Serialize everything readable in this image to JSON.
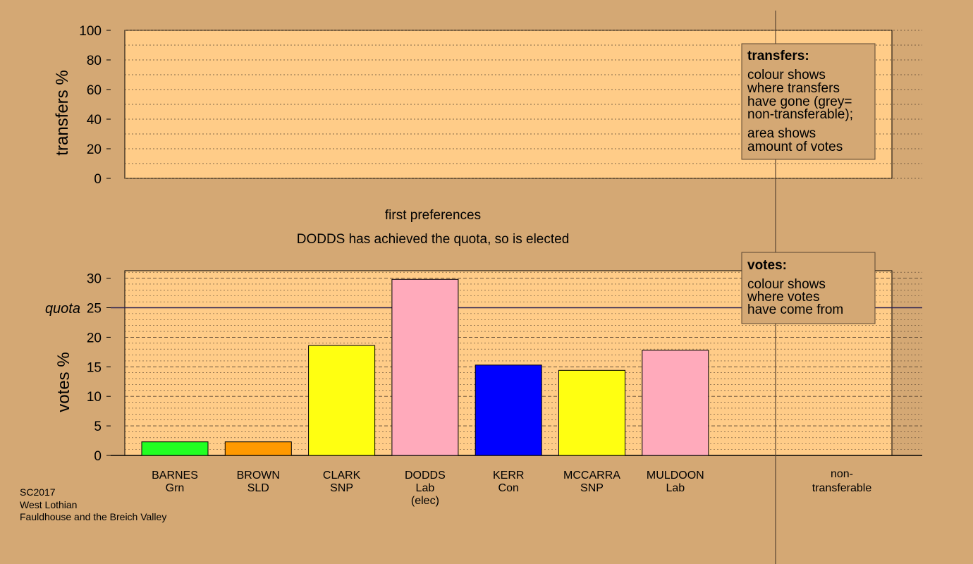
{
  "colors": {
    "background": "#d4a874",
    "plot_fill": "#ffcc88",
    "grid": "#5a4632",
    "BARNES": "#22ff22",
    "BROWN": "#ff9900",
    "CLARK": "#ffff11",
    "DODDS": "#ffaabb",
    "KERR": "#0000ff",
    "MCCARRA": "#ffff11",
    "MULDOON": "#ffaabb"
  },
  "chart_data": [
    {
      "type": "bar",
      "panel": "transfers",
      "ylabel": "transfers %",
      "ylim": [
        0,
        100
      ],
      "yticks": [
        0,
        20,
        40,
        60,
        80,
        100
      ],
      "legend": {
        "title": "transfers:",
        "lines": [
          "colour shows",
          "where transfers",
          "have gone (grey=",
          "non-transferable);",
          "area shows",
          "amount of votes"
        ]
      }
    },
    {
      "type": "bar",
      "panel": "votes",
      "ylabel": "votes %",
      "ylim": [
        0,
        31
      ],
      "yticks": [
        0,
        5,
        10,
        15,
        20,
        25,
        30
      ],
      "quota": 25,
      "quota_label": "quota",
      "subtitle": "first preferences",
      "title": "DODDS has achieved the quota, so is elected",
      "categories": [
        {
          "name": "BARNES",
          "party": "Grn",
          "note": "",
          "value": 2.3
        },
        {
          "name": "BROWN",
          "party": "SLD",
          "note": "",
          "value": 2.3
        },
        {
          "name": "CLARK",
          "party": "SNP",
          "note": "",
          "value": 18.6
        },
        {
          "name": "DODDS",
          "party": "Lab",
          "note": "(elec)",
          "value": 29.8
        },
        {
          "name": "KERR",
          "party": "Con",
          "note": "",
          "value": 15.3
        },
        {
          "name": "MCCARRA",
          "party": "SNP",
          "note": "",
          "value": 14.4
        },
        {
          "name": "MULDOON",
          "party": "Lab",
          "note": "",
          "value": 17.8
        }
      ],
      "nontransferable_label": [
        "non-",
        "transferable"
      ],
      "legend": {
        "title": "votes:",
        "lines": [
          "colour shows",
          "where votes",
          "have come from"
        ]
      }
    }
  ],
  "footer": {
    "election": "SC2017",
    "council": "West Lothian",
    "ward": "Fauldhouse and the Breich Valley"
  }
}
